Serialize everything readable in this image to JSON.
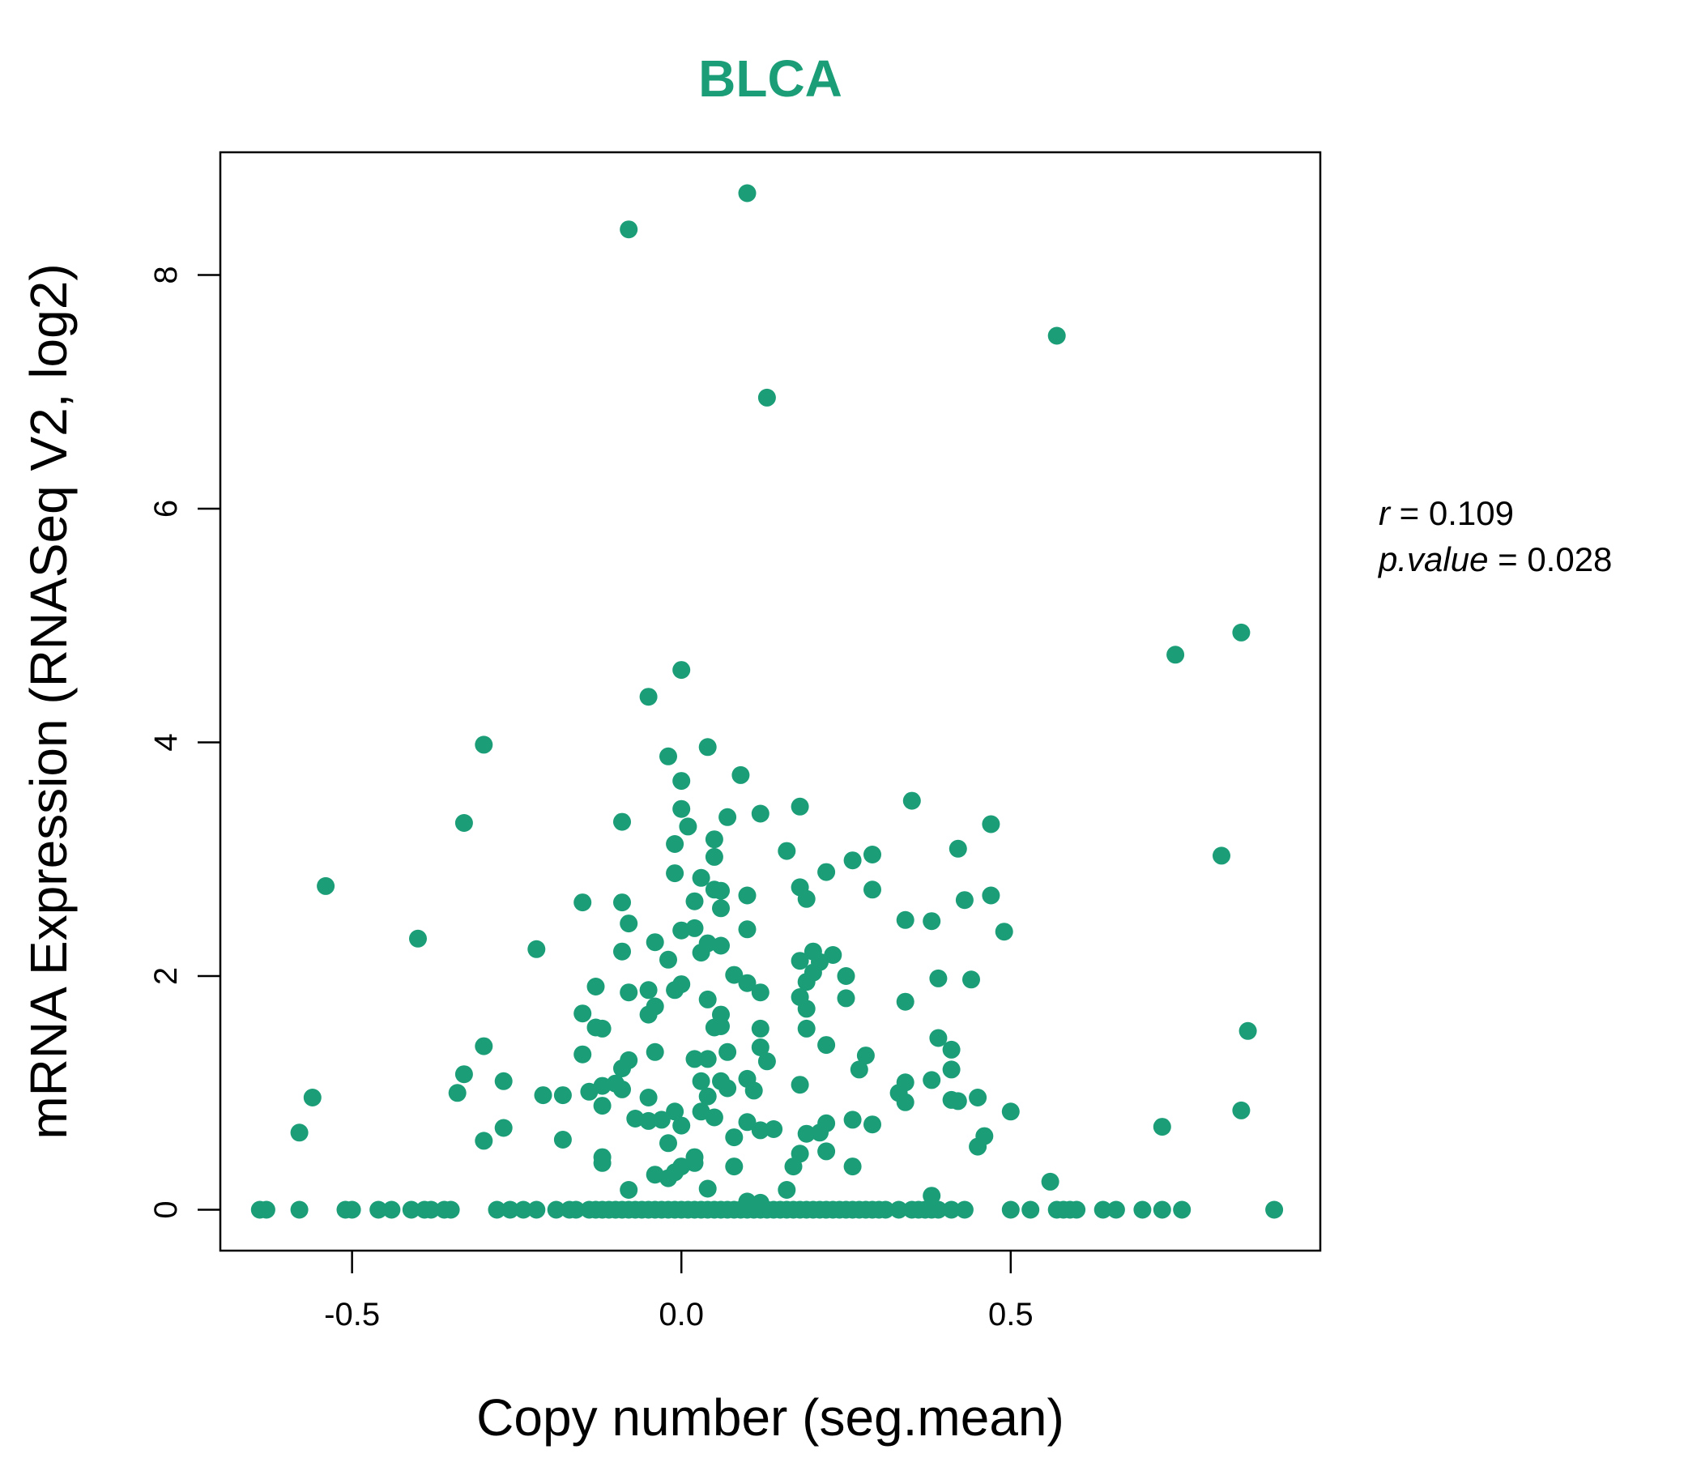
{
  "chart_data": {
    "type": "scatter",
    "title": "BLCA",
    "xlabel": "Copy number (seg.mean)",
    "ylabel": "mRNA Expression (RNASeq V2, log2)",
    "xlim": [
      -0.7,
      0.97
    ],
    "ylim": [
      -0.35,
      9.05
    ],
    "xticks": [
      -0.5,
      0.0,
      0.5
    ],
    "xtick_labels": [
      "-0.5",
      "0.0",
      "0.5"
    ],
    "yticks": [
      0,
      2,
      4,
      6,
      8
    ],
    "ytick_labels": [
      "0",
      "2",
      "4",
      "6",
      "8"
    ],
    "grid": false,
    "colors": {
      "points": "#1b9e77",
      "title": "#1b9e77",
      "axes": "#000000"
    },
    "stats": {
      "r_symbol": "r",
      "r_value": "0.109",
      "p_symbol": "p.value",
      "p_value": "0.028"
    },
    "series": [
      {
        "points": [
          [
            -0.64,
            0
          ],
          [
            -0.63,
            0
          ],
          [
            -0.58,
            0
          ],
          [
            -0.51,
            0
          ],
          [
            -0.5,
            0
          ],
          [
            -0.46,
            0
          ],
          [
            -0.44,
            0
          ],
          [
            -0.41,
            0
          ],
          [
            -0.39,
            0
          ],
          [
            -0.38,
            0
          ],
          [
            -0.36,
            0
          ],
          [
            -0.35,
            0
          ],
          [
            -0.28,
            0
          ],
          [
            -0.26,
            0
          ],
          [
            -0.24,
            0
          ],
          [
            -0.22,
            0
          ],
          [
            -0.19,
            0
          ],
          [
            -0.17,
            0
          ],
          [
            -0.16,
            0
          ],
          [
            -0.14,
            0
          ],
          [
            -0.13,
            0
          ],
          [
            -0.12,
            0
          ],
          [
            -0.11,
            0
          ],
          [
            -0.1,
            0
          ],
          [
            -0.09,
            0
          ],
          [
            -0.08,
            0
          ],
          [
            -0.07,
            0
          ],
          [
            -0.06,
            0
          ],
          [
            -0.05,
            0
          ],
          [
            -0.04,
            0
          ],
          [
            -0.03,
            0
          ],
          [
            -0.02,
            0
          ],
          [
            -0.01,
            0
          ],
          [
            0.0,
            0
          ],
          [
            0.01,
            0
          ],
          [
            0.02,
            0
          ],
          [
            0.03,
            0
          ],
          [
            0.04,
            0
          ],
          [
            0.05,
            0
          ],
          [
            0.06,
            0
          ],
          [
            0.07,
            0
          ],
          [
            0.08,
            0
          ],
          [
            0.09,
            0
          ],
          [
            0.1,
            0
          ],
          [
            0.11,
            0
          ],
          [
            0.12,
            0
          ],
          [
            0.13,
            0
          ],
          [
            0.14,
            0
          ],
          [
            0.15,
            0
          ],
          [
            0.16,
            0
          ],
          [
            0.17,
            0
          ],
          [
            0.18,
            0
          ],
          [
            0.19,
            0
          ],
          [
            0.2,
            0
          ],
          [
            0.21,
            0
          ],
          [
            0.22,
            0
          ],
          [
            0.23,
            0
          ],
          [
            0.24,
            0
          ],
          [
            0.25,
            0
          ],
          [
            0.26,
            0
          ],
          [
            0.27,
            0
          ],
          [
            0.28,
            0
          ],
          [
            0.29,
            0
          ],
          [
            0.3,
            0
          ],
          [
            0.31,
            0
          ],
          [
            0.33,
            0
          ],
          [
            0.35,
            0
          ],
          [
            0.36,
            0
          ],
          [
            0.37,
            0
          ],
          [
            0.38,
            0
          ],
          [
            0.39,
            0
          ],
          [
            0.41,
            0
          ],
          [
            0.43,
            0
          ],
          [
            0.5,
            0
          ],
          [
            0.53,
            0
          ],
          [
            0.57,
            0
          ],
          [
            0.58,
            0
          ],
          [
            0.59,
            0
          ],
          [
            0.6,
            0
          ],
          [
            0.64,
            0
          ],
          [
            0.66,
            0
          ],
          [
            0.7,
            0
          ],
          [
            0.73,
            0
          ],
          [
            0.76,
            0
          ],
          [
            0.9,
            0
          ],
          [
            -0.08,
            8.39
          ],
          [
            0.1,
            8.7
          ],
          [
            0.13,
            6.95
          ],
          [
            0.57,
            7.48
          ],
          [
            0.75,
            4.75
          ],
          [
            0.85,
            4.94
          ],
          [
            -0.05,
            4.39
          ],
          [
            0.0,
            4.62
          ],
          [
            -0.3,
            3.98
          ],
          [
            0.04,
            3.96
          ],
          [
            -0.02,
            3.88
          ],
          [
            0.09,
            3.72
          ],
          [
            0.0,
            3.67
          ],
          [
            -0.33,
            3.31
          ],
          [
            -0.09,
            3.32
          ],
          [
            0.0,
            3.43
          ],
          [
            0.01,
            3.28
          ],
          [
            0.07,
            3.36
          ],
          [
            0.12,
            3.39
          ],
          [
            0.18,
            3.45
          ],
          [
            0.35,
            3.5
          ],
          [
            0.47,
            3.3
          ],
          [
            0.82,
            3.03
          ],
          [
            -0.01,
            3.13
          ],
          [
            0.05,
            3.17
          ],
          [
            0.05,
            3.02
          ],
          [
            0.16,
            3.07
          ],
          [
            0.26,
            2.99
          ],
          [
            0.29,
            3.04
          ],
          [
            0.42,
            3.09
          ],
          [
            -0.54,
            2.77
          ],
          [
            -0.01,
            2.88
          ],
          [
            0.03,
            2.84
          ],
          [
            0.05,
            2.74
          ],
          [
            0.06,
            2.73
          ],
          [
            0.1,
            2.69
          ],
          [
            0.18,
            2.76
          ],
          [
            0.19,
            2.66
          ],
          [
            0.22,
            2.89
          ],
          [
            0.29,
            2.74
          ],
          [
            -0.15,
            2.63
          ],
          [
            -0.09,
            2.63
          ],
          [
            0.02,
            2.64
          ],
          [
            0.06,
            2.58
          ],
          [
            0.34,
            2.48
          ],
          [
            0.38,
            2.47
          ],
          [
            0.43,
            2.65
          ],
          [
            0.47,
            2.69
          ],
          [
            -0.4,
            2.32
          ],
          [
            -0.08,
            2.45
          ],
          [
            0.0,
            2.39
          ],
          [
            0.02,
            2.41
          ],
          [
            0.04,
            2.28
          ],
          [
            0.06,
            2.26
          ],
          [
            0.1,
            2.4
          ],
          [
            0.49,
            2.38
          ],
          [
            -0.22,
            2.23
          ],
          [
            -0.04,
            2.29
          ],
          [
            -0.09,
            2.21
          ],
          [
            -0.02,
            2.14
          ],
          [
            0.03,
            2.2
          ],
          [
            0.18,
            2.13
          ],
          [
            0.2,
            2.21
          ],
          [
            0.21,
            2.12
          ],
          [
            0.23,
            2.18
          ],
          [
            -0.13,
            1.91
          ],
          [
            -0.08,
            1.86
          ],
          [
            -0.05,
            1.88
          ],
          [
            -0.01,
            1.88
          ],
          [
            0.0,
            1.93
          ],
          [
            0.08,
            2.01
          ],
          [
            0.1,
            1.94
          ],
          [
            0.12,
            1.86
          ],
          [
            0.2,
            2.03
          ],
          [
            0.19,
            1.95
          ],
          [
            0.25,
            2.0
          ],
          [
            0.39,
            1.98
          ],
          [
            0.44,
            1.97
          ],
          [
            -0.04,
            1.74
          ],
          [
            -0.05,
            1.67
          ],
          [
            0.04,
            1.8
          ],
          [
            0.06,
            1.67
          ],
          [
            0.06,
            1.57
          ],
          [
            0.19,
            1.72
          ],
          [
            0.18,
            1.82
          ],
          [
            0.25,
            1.81
          ],
          [
            0.34,
            1.78
          ],
          [
            -0.15,
            1.68
          ],
          [
            -0.13,
            1.56
          ],
          [
            -0.12,
            1.55
          ],
          [
            0.05,
            1.56
          ],
          [
            0.12,
            1.55
          ],
          [
            0.19,
            1.55
          ],
          [
            -0.3,
            1.4
          ],
          [
            -0.15,
            1.33
          ],
          [
            -0.04,
            1.35
          ],
          [
            0.02,
            1.29
          ],
          [
            0.04,
            1.29
          ],
          [
            0.07,
            1.35
          ],
          [
            0.12,
            1.39
          ],
          [
            0.13,
            1.27
          ],
          [
            0.22,
            1.41
          ],
          [
            0.28,
            1.32
          ],
          [
            0.39,
            1.47
          ],
          [
            0.41,
            1.37
          ],
          [
            0.86,
            1.53
          ],
          [
            -0.33,
            1.16
          ],
          [
            -0.27,
            1.1
          ],
          [
            -0.09,
            1.21
          ],
          [
            -0.08,
            1.28
          ],
          [
            -0.12,
            1.06
          ],
          [
            -0.1,
            1.08
          ],
          [
            -0.09,
            1.03
          ],
          [
            0.03,
            1.1
          ],
          [
            0.06,
            1.1
          ],
          [
            0.07,
            1.04
          ],
          [
            0.1,
            1.12
          ],
          [
            0.11,
            1.02
          ],
          [
            0.18,
            1.07
          ],
          [
            0.27,
            1.2
          ],
          [
            0.34,
            1.09
          ],
          [
            0.38,
            1.11
          ],
          [
            0.41,
            1.2
          ],
          [
            -0.56,
            0.96
          ],
          [
            -0.34,
            1.0
          ],
          [
            -0.21,
            0.98
          ],
          [
            -0.18,
            0.98
          ],
          [
            -0.14,
            1.01
          ],
          [
            -0.12,
            0.89
          ],
          [
            -0.05,
            0.96
          ],
          [
            0.04,
            0.97
          ],
          [
            0.33,
            1.0
          ],
          [
            0.34,
            0.92
          ],
          [
            0.41,
            0.94
          ],
          [
            0.42,
            0.93
          ],
          [
            0.45,
            0.96
          ],
          [
            0.5,
            0.84
          ],
          [
            -0.58,
            0.66
          ],
          [
            -0.27,
            0.7
          ],
          [
            -0.07,
            0.78
          ],
          [
            -0.05,
            0.76
          ],
          [
            -0.03,
            0.77
          ],
          [
            -0.01,
            0.84
          ],
          [
            0.0,
            0.72
          ],
          [
            0.03,
            0.84
          ],
          [
            0.05,
            0.79
          ],
          [
            0.1,
            0.75
          ],
          [
            0.12,
            0.68
          ],
          [
            0.14,
            0.69
          ],
          [
            0.19,
            0.65
          ],
          [
            0.21,
            0.66
          ],
          [
            0.22,
            0.74
          ],
          [
            0.26,
            0.77
          ],
          [
            0.29,
            0.73
          ],
          [
            0.46,
            0.63
          ],
          [
            0.73,
            0.71
          ],
          [
            0.85,
            0.85
          ],
          [
            -0.3,
            0.59
          ],
          [
            -0.18,
            0.6
          ],
          [
            -0.12,
            0.45
          ],
          [
            -0.12,
            0.4
          ],
          [
            -0.02,
            0.57
          ],
          [
            0.02,
            0.45
          ],
          [
            0.02,
            0.4
          ],
          [
            0.08,
            0.37
          ],
          [
            0.08,
            0.62
          ],
          [
            0.17,
            0.37
          ],
          [
            0.18,
            0.48
          ],
          [
            0.22,
            0.5
          ],
          [
            0.26,
            0.37
          ],
          [
            0.45,
            0.54
          ],
          [
            -0.04,
            0.3
          ],
          [
            -0.02,
            0.27
          ],
          [
            -0.01,
            0.32
          ],
          [
            0.0,
            0.37
          ],
          [
            0.04,
            0.18
          ],
          [
            -0.08,
            0.17
          ],
          [
            0.16,
            0.17
          ],
          [
            0.38,
            0.12
          ],
          [
            0.56,
            0.24
          ],
          [
            0.1,
            0.07
          ],
          [
            0.12,
            0.06
          ]
        ]
      }
    ]
  }
}
